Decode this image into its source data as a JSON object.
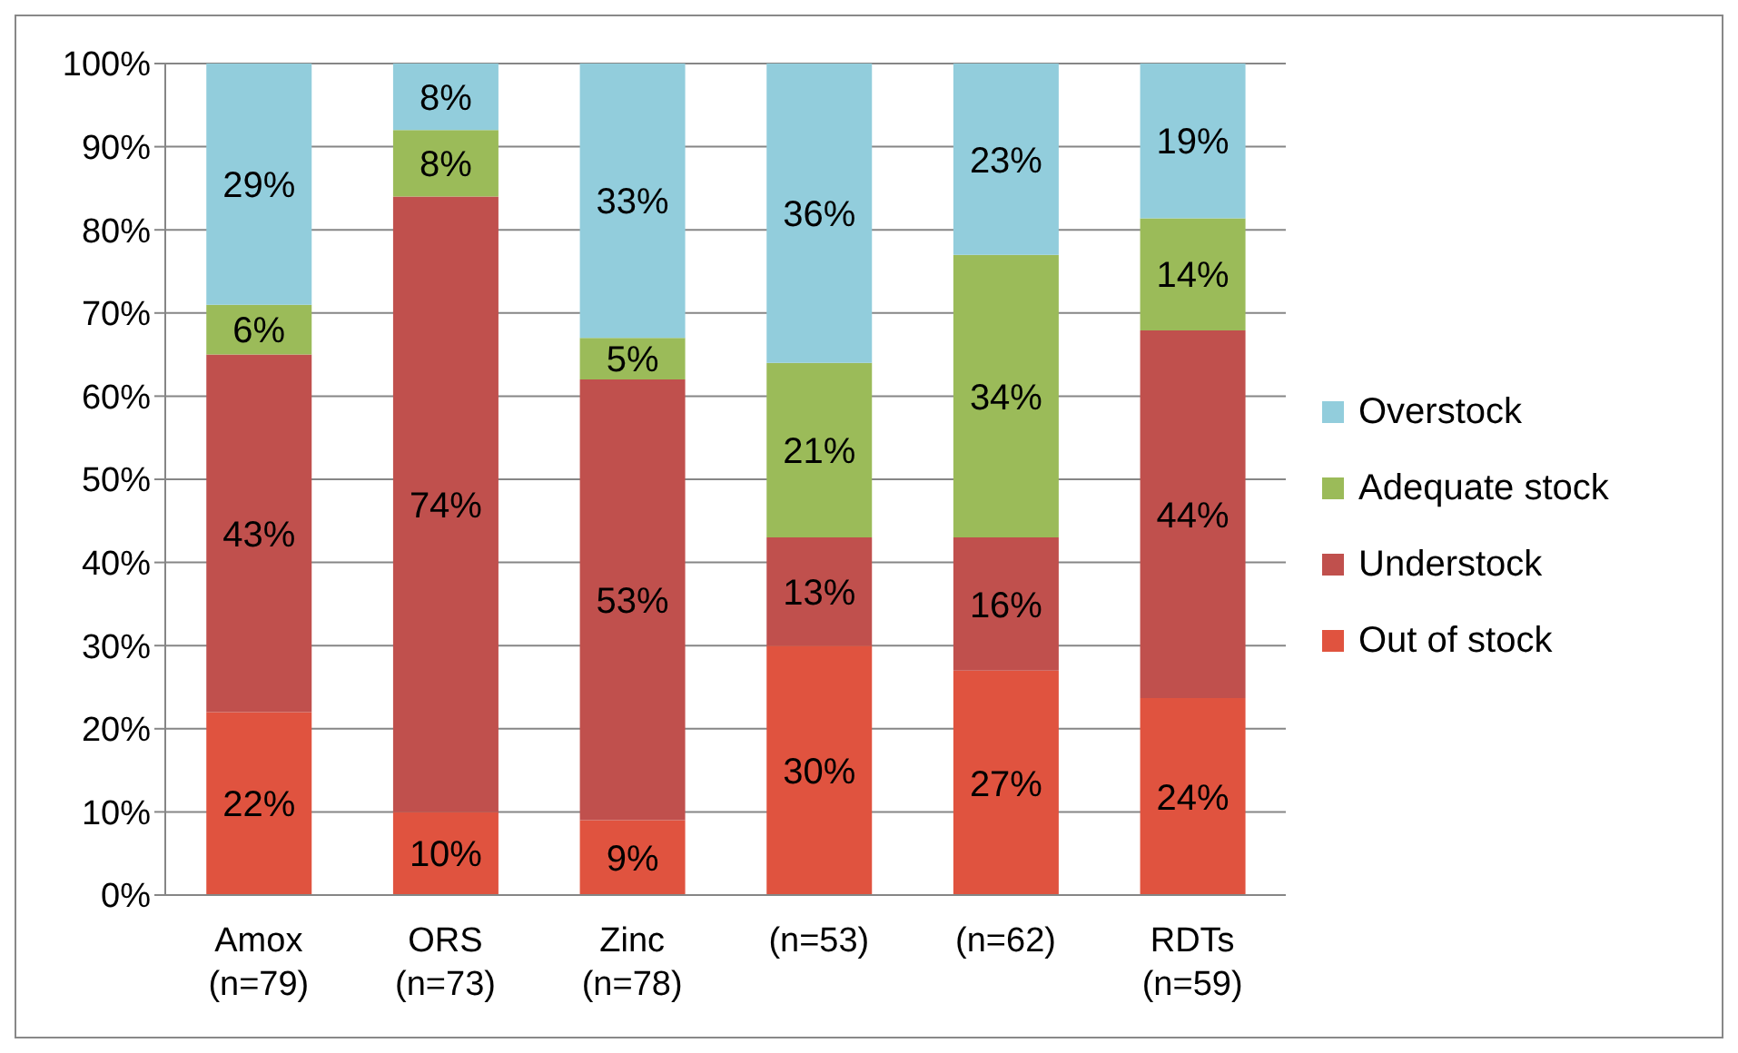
{
  "chart_data": {
    "type": "bar",
    "stacked": true,
    "categories": [
      "Amox\n(n=79)",
      "ORS\n(n=73)",
      "Zinc\n(n=78)",
      "(n=53)",
      "(n=62)",
      "RDTs\n(n=59)"
    ],
    "series": [
      {
        "name": "Out of stock",
        "color": "#e0533f",
        "values": [
          22,
          10,
          9,
          30,
          27,
          23.7
        ],
        "value_labels": [
          "22%",
          "10%",
          "9%",
          "30%",
          "27%",
          "24%"
        ]
      },
      {
        "name": "Understock",
        "color": "#c0504d",
        "values": [
          43,
          74,
          53,
          13,
          16,
          44.2
        ],
        "value_labels": [
          "43%",
          "74%",
          "53%",
          "13%",
          "16%",
          "44%"
        ]
      },
      {
        "name": "Adequate stock",
        "color": "#9bbb59",
        "values": [
          6,
          8,
          5,
          21,
          34,
          13.5
        ],
        "value_labels": [
          "6%",
          "8%",
          "5%",
          "21%",
          "34%",
          "14%"
        ]
      },
      {
        "name": "Overstock",
        "color": "#92cddc",
        "values": [
          29,
          8,
          33,
          36,
          23,
          18.6
        ],
        "value_labels": [
          "29%",
          "8%",
          "33%",
          "36%",
          "23%",
          "19%"
        ]
      }
    ],
    "ylim": [
      0,
      100
    ],
    "yticks": [
      {
        "value": 0,
        "label": "0%"
      },
      {
        "value": 10,
        "label": "10%"
      },
      {
        "value": 20,
        "label": "20%"
      },
      {
        "value": 30,
        "label": "30%"
      },
      {
        "value": 40,
        "label": "40%"
      },
      {
        "value": 50,
        "label": "50%"
      },
      {
        "value": 60,
        "label": "60%"
      },
      {
        "value": 70,
        "label": "70%"
      },
      {
        "value": 80,
        "label": "80%"
      },
      {
        "value": 90,
        "label": "90%"
      },
      {
        "value": 100,
        "label": "100%"
      }
    ],
    "grid": "y",
    "legend": "right"
  }
}
